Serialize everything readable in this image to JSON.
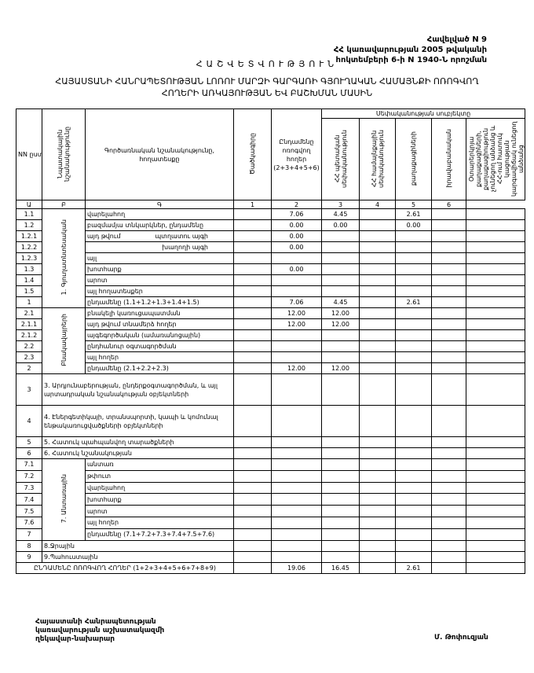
{
  "annex": {
    "line1": "Հավելված N 9",
    "line2": "ՀՀ կառավարության 2005 թվականի",
    "line3": "հոկտեմբերի 6-ի N 1940-Ն որոշման"
  },
  "title": "ՀԱՇՎԵՏՎՈՒԹՅՈՒՆ",
  "subtitle_line1": "ՀԱՅԱՍՏԱՆԻ ՀԱՆՐԱՊԵՏՈՒԹՅԱՆ ԼՈՌՈՒ ՄԱՐԶԻ ԳԱՐԳԱՌԻ ԳՅՈՒՂԱԿԱՆ ՀԱՄԱՅՆՔԻ ՈՌՈԳՎՈՂ",
  "subtitle_line2": "ՀՈՂԵՐԻ ԱՌԿԱՅՈՒԹՅԱՆ ԵՎ ԲԱՇԽՄԱՆ ՄԱՍԻՆ",
  "table": {
    "headers": {
      "nn": "NN ըստ",
      "purpose": "Նպատակային նշանակությունը",
      "function": "Գործառնական նշանակությունը, հողատեսքը",
      "code": "Ծածկագիրը",
      "total": "Ընդամենը ոռոգվող հողեր (2+3+4+5+6)",
      "ownership": "Սեփականության սուբյեկտը",
      "owners": [
        "ՀՀ պետական սեփականություն",
        "ՀՀ համայնքային սեփականություն",
        "քաղաքացիների",
        "իրավաբանական",
        "Օտարերկրյա քաղաքացիների, քաղաքացիություն չունեցող անձանց և ՀՀ-ում հատուկ կացության կարգավիճակ ունեցող անձանց"
      ],
      "col_codes": [
        "Ա",
        "Բ",
        "Գ",
        "1",
        "2",
        "3",
        "4",
        "5",
        "6"
      ]
    },
    "groups": [
      {
        "label": "1. Գյուղատնտեսական",
        "rows": [
          {
            "nn": "1.1",
            "name": "վարելահող",
            "sub": "",
            "v": [
              "7.06",
              "4.45",
              "",
              "2.61",
              "",
              ""
            ]
          },
          {
            "nn": "1.2",
            "name": "բազմամյա տնկարկներ, ընդամենը",
            "sub": "",
            "v": [
              "0.00",
              "0.00",
              "",
              "0.00",
              "",
              ""
            ]
          },
          {
            "nn": "1.2.1",
            "name": "այդ թվում",
            "sub": "պտղատու այգի",
            "v": [
              "0.00",
              "",
              "",
              "",
              "",
              ""
            ]
          },
          {
            "nn": "1.2.2",
            "name": "",
            "sub": "խաղողի այգի",
            "v": [
              "0.00",
              "",
              "",
              "",
              "",
              ""
            ]
          },
          {
            "nn": "1.2.3",
            "name": "այլ",
            "sub": "",
            "v": [
              "",
              "",
              "",
              "",
              "",
              ""
            ]
          },
          {
            "nn": "1.3",
            "name": "խոտհարք",
            "sub": "",
            "v": [
              "0.00",
              "",
              "",
              "",
              "",
              ""
            ]
          },
          {
            "nn": "1.4",
            "name": "արոտ",
            "sub": "",
            "v": [
              "",
              "",
              "",
              "",
              "",
              ""
            ]
          },
          {
            "nn": "1.5",
            "name": "այլ հողատեսքեր",
            "sub": "",
            "v": [
              "",
              "",
              "",
              "",
              "",
              ""
            ]
          },
          {
            "nn": "1",
            "name": "ընդամենը (1.1+1.2+1.3+1.4+1.5)",
            "sub": "",
            "v": [
              "7.06",
              "4.45",
              "",
              "2.61",
              "",
              ""
            ]
          }
        ]
      },
      {
        "label": "Բնակավայրերի",
        "rows": [
          {
            "nn": "2.1",
            "name": "բնակելի կառուցապատման",
            "sub": "",
            "v": [
              "12.00",
              "12.00",
              "",
              "",
              "",
              ""
            ]
          },
          {
            "nn": "2.1.1",
            "name": "այդ թվում տնամերձ հողեր",
            "sub": "",
            "v": [
              "12.00",
              "12.00",
              "",
              "",
              "",
              ""
            ]
          },
          {
            "nn": "2.1.2",
            "name": "այգեգործական (ամառանոցային)",
            "sub": "",
            "v": [
              "",
              "",
              "",
              "",
              "",
              ""
            ]
          },
          {
            "nn": "2.2",
            "name": "ընդհանուր օգտագործման",
            "sub": "",
            "v": [
              "",
              "",
              "",
              "",
              "",
              ""
            ]
          },
          {
            "nn": "2.3",
            "name": "այլ հողեր",
            "sub": "",
            "v": [
              "",
              "",
              "",
              "",
              "",
              ""
            ]
          },
          {
            "nn": "2",
            "name": "ընդամենը (2.1+2.2+2.3)",
            "sub": "",
            "v": [
              "12.00",
              "12.00",
              "",
              "",
              "",
              ""
            ]
          }
        ]
      },
      {
        "single": true,
        "rows": [
          {
            "nn": "3",
            "name": "3. Արդյունաբերության, ընդերքօգտագործման, և այլ արտադրական նշանակության օբյեկտների",
            "tall": true,
            "v": [
              "",
              "",
              "",
              "",
              "",
              ""
            ]
          },
          {
            "nn": "4",
            "name": "4. Էներգետիկայի, տրանսպորտի, կապի և կոմունալ ենթակառուցվածքների օբյեկտների",
            "tall": true,
            "v": [
              "",
              "",
              "",
              "",
              "",
              ""
            ]
          },
          {
            "nn": "5",
            "name": "5. Հատուկ պահպանվող տարածքների",
            "v": [
              "",
              "",
              "",
              "",
              "",
              ""
            ]
          },
          {
            "nn": "6",
            "name": "6. Հատուկ նշանակության",
            "v": [
              "",
              "",
              "",
              "",
              "",
              ""
            ]
          }
        ]
      },
      {
        "label": "7. Անտառային",
        "rows": [
          {
            "nn": "7.1",
            "name": "անտառ",
            "sub": "",
            "v": [
              "",
              "",
              "",
              "",
              "",
              ""
            ]
          },
          {
            "nn": "7.2",
            "name": "թփուտ",
            "sub": "",
            "v": [
              "",
              "",
              "",
              "",
              "",
              ""
            ]
          },
          {
            "nn": "7.3",
            "name": "վարելահող",
            "sub": "",
            "v": [
              "",
              "",
              "",
              "",
              "",
              ""
            ]
          },
          {
            "nn": "7.4",
            "name": "խոտհարք",
            "sub": "",
            "v": [
              "",
              "",
              "",
              "",
              "",
              ""
            ]
          },
          {
            "nn": "7.5",
            "name": "արոտ",
            "sub": "",
            "v": [
              "",
              "",
              "",
              "",
              "",
              ""
            ]
          },
          {
            "nn": "7.6",
            "name": "այլ հողեր",
            "sub": "",
            "v": [
              "",
              "",
              "",
              "",
              "",
              ""
            ]
          },
          {
            "nn": "7",
            "name": "ընդամենը (7.1+7.2+7.3+7.4+7.5+7.6)",
            "sub": "",
            "v": [
              "",
              "",
              "",
              "",
              "",
              ""
            ]
          }
        ]
      },
      {
        "single": true,
        "rows": [
          {
            "nn": "8",
            "name": "8.Ջրային",
            "v": [
              "",
              "",
              "",
              "",
              "",
              ""
            ]
          },
          {
            "nn": "9",
            "name": "9.Պահուստային",
            "v": [
              "",
              "",
              "",
              "",
              "",
              ""
            ]
          }
        ]
      }
    ],
    "total": {
      "label": "ԸՆԴԱՄԵՆԸ ՈՌՈԳՎՈՂ ՀՈՂԵՐ (1+2+3+4+5+6+7+8+9)",
      "v": [
        "19.06",
        "16.45",
        "",
        "2.61",
        "",
        ""
      ]
    }
  },
  "signature": {
    "line1": "Հայաստանի Հանրապետության",
    "line2": "կառավարության աշխատակազմի",
    "line3": "ղեկավար-նախարար",
    "name": "Մ. Թոփուզյան"
  }
}
